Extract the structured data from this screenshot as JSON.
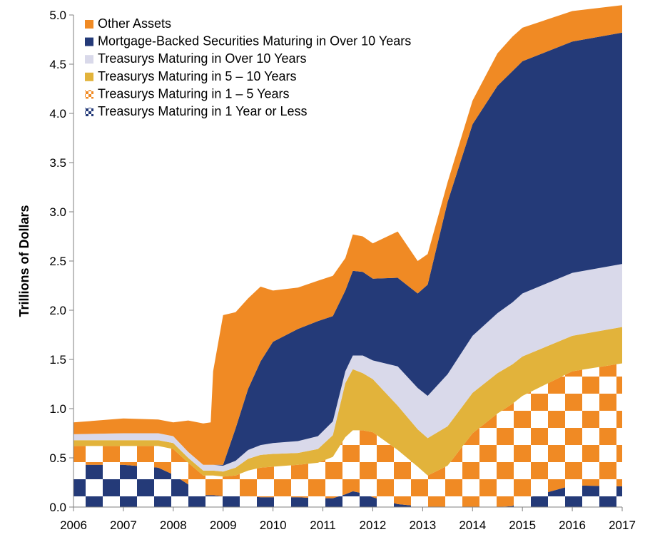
{
  "chart_data": {
    "type": "area",
    "stacked": true,
    "title": "",
    "xlabel": "",
    "ylabel": "Trillions of Dollars",
    "xlim": [
      2006,
      2017
    ],
    "ylim": [
      0,
      5
    ],
    "x_ticks": [
      "2006",
      "2007",
      "2008",
      "2009",
      "2010",
      "2011",
      "2012",
      "2013",
      "2014",
      "2015",
      "2016",
      "2017"
    ],
    "y_ticks": [
      "0.0",
      "0.5",
      "1.0",
      "1.5",
      "2.0",
      "2.5",
      "3.0",
      "3.5",
      "4.0",
      "4.5",
      "5.0"
    ],
    "grid": false,
    "legend_position": "top-left",
    "colors": {
      "navy": "#243a78",
      "orange": "#f08a24",
      "lavender": "#d9d9ea",
      "gold": "#e2b33b"
    },
    "x": [
      2006.0,
      2007.0,
      2007.7,
      2008.0,
      2008.3,
      2008.6,
      2008.75,
      2008.8,
      2009.0,
      2009.25,
      2009.5,
      2009.75,
      2010.0,
      2010.5,
      2010.9,
      2011.2,
      2011.45,
      2011.6,
      2011.8,
      2012.0,
      2012.5,
      2012.9,
      2013.1,
      2013.5,
      2014.0,
      2014.5,
      2014.8,
      2015.0,
      2016.0,
      2017.0
    ],
    "series": [
      {
        "name": "Treasurys Maturing in 1 Year or Less",
        "pattern": "checker-navy",
        "values": [
          0.43,
          0.43,
          0.4,
          0.33,
          0.23,
          0.12,
          0.12,
          0.12,
          0.11,
          0.11,
          0.11,
          0.1,
          0.1,
          0.1,
          0.09,
          0.09,
          0.13,
          0.16,
          0.14,
          0.1,
          0.03,
          0.01,
          0.0,
          0.0,
          0.0,
          0.0,
          0.01,
          0.08,
          0.22,
          0.21
        ]
      },
      {
        "name": "Treasurys Maturing in 1 – 5 Years",
        "pattern": "checker-orange",
        "values": [
          0.19,
          0.19,
          0.22,
          0.26,
          0.22,
          0.2,
          0.2,
          0.2,
          0.2,
          0.21,
          0.26,
          0.3,
          0.31,
          0.33,
          0.36,
          0.42,
          0.58,
          0.62,
          0.64,
          0.66,
          0.55,
          0.4,
          0.32,
          0.42,
          0.75,
          0.95,
          1.04,
          1.05,
          1.16,
          1.25
        ]
      },
      {
        "name": "Treasurys Maturing in 5 – 10 Years",
        "values": [
          0.06,
          0.06,
          0.06,
          0.06,
          0.05,
          0.05,
          0.05,
          0.05,
          0.05,
          0.08,
          0.12,
          0.13,
          0.13,
          0.12,
          0.14,
          0.22,
          0.55,
          0.62,
          0.58,
          0.54,
          0.45,
          0.38,
          0.38,
          0.4,
          0.41,
          0.41,
          0.4,
          0.4,
          0.36,
          0.37
        ]
      },
      {
        "name": "Treasurys Maturing in Over 10 Years",
        "values": [
          0.06,
          0.07,
          0.07,
          0.07,
          0.06,
          0.06,
          0.06,
          0.06,
          0.06,
          0.07,
          0.09,
          0.1,
          0.11,
          0.12,
          0.13,
          0.14,
          0.12,
          0.14,
          0.18,
          0.19,
          0.4,
          0.42,
          0.43,
          0.53,
          0.58,
          0.61,
          0.63,
          0.64,
          0.64,
          0.64
        ]
      },
      {
        "name": "Mortgage-Backed Securities Maturing in Over 10 Years",
        "values": [
          0.0,
          0.0,
          0.0,
          0.0,
          0.0,
          0.0,
          0.0,
          0.0,
          0.01,
          0.33,
          0.62,
          0.85,
          1.03,
          1.14,
          1.17,
          1.07,
          0.82,
          0.86,
          0.85,
          0.83,
          0.9,
          0.96,
          1.13,
          1.75,
          2.15,
          2.31,
          2.35,
          2.36,
          2.35,
          2.35
        ]
      },
      {
        "name": "Other Assets",
        "values": [
          0.12,
          0.15,
          0.14,
          0.14,
          0.32,
          0.42,
          0.43,
          0.95,
          1.52,
          1.18,
          0.92,
          0.76,
          0.52,
          0.42,
          0.41,
          0.41,
          0.33,
          0.37,
          0.36,
          0.36,
          0.47,
          0.33,
          0.31,
          0.2,
          0.24,
          0.33,
          0.35,
          0.34,
          0.31,
          0.28
        ]
      }
    ]
  }
}
